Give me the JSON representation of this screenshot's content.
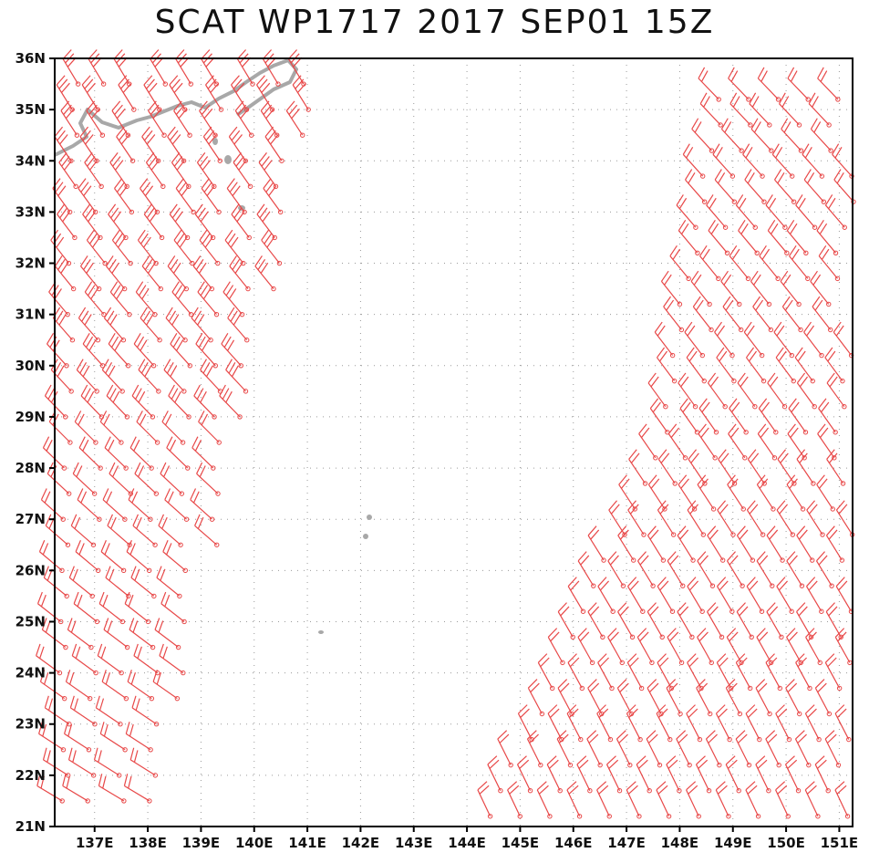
{
  "title": "SCAT WP1717 2017 SEP01 15Z",
  "colors": {
    "wind_barb": "#e84848",
    "coastline": "#a8a8a8",
    "grid": "#9a9a9a",
    "frame": "#000000"
  },
  "map": {
    "lon_range": [
      136.25,
      151.25
    ],
    "lat_range": [
      21,
      36
    ],
    "lat_labels": [
      "21N",
      "22N",
      "23N",
      "24N",
      "25N",
      "26N",
      "27N",
      "28N",
      "29N",
      "30N",
      "31N",
      "32N",
      "33N",
      "34N",
      "35N",
      "36N"
    ],
    "lon_labels": [
      "137E",
      "138E",
      "139E",
      "140E",
      "141E",
      "142E",
      "143E",
      "144E",
      "145E",
      "146E",
      "147E",
      "148E",
      "149E",
      "150E",
      "151E"
    ]
  },
  "wind_swaths": [
    {
      "name": "west-swath",
      "lon_min": 136.3,
      "lon_max": 141.3,
      "dir_deg": 300,
      "kt": 20
    },
    {
      "name": "east-swath",
      "lon_min": 144.2,
      "lon_max": 151.2,
      "dir_deg": 330,
      "kt": 20
    }
  ]
}
